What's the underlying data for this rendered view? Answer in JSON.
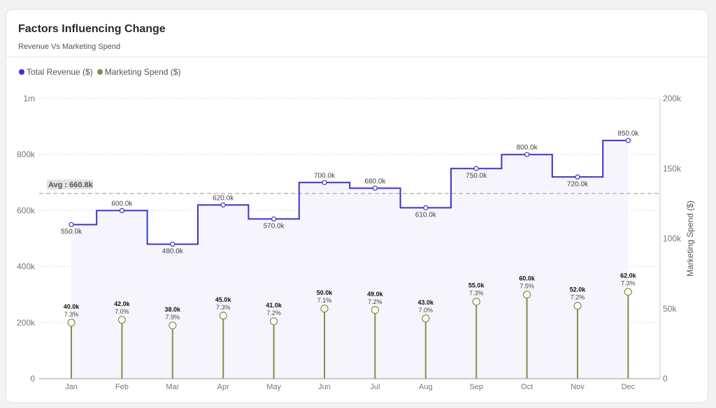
{
  "card": {
    "title": "Factors Influencing Change",
    "subtitle": "Revenue Vs Marketing Spend"
  },
  "legend": [
    {
      "label": "Total Revenue ($)",
      "color": "#3a35c8"
    },
    {
      "label": "Marketing Spend ($)",
      "color": "#8c8a4a"
    }
  ],
  "chart_data": {
    "type": "line",
    "categories": [
      "Jan",
      "Feb",
      "Mar",
      "Apr",
      "May",
      "Jun",
      "Jul",
      "Aug",
      "Sep",
      "Oct",
      "Nov",
      "Dec"
    ],
    "series": [
      {
        "name": "Total Revenue ($)",
        "kind": "step-line",
        "axis": "left",
        "color": "#3a35c8",
        "values": [
          550000,
          600000,
          480000,
          620000,
          570000,
          700000,
          680000,
          610000,
          750000,
          800000,
          720000,
          850000
        ],
        "labels": [
          "550.0k",
          "600.0k",
          "480.0k",
          "620.0k",
          "570.0k",
          "700.0k",
          "680.0k",
          "610.0k",
          "750.0k",
          "800.0k",
          "720.0k",
          "850.0k"
        ]
      },
      {
        "name": "Marketing Spend ($)",
        "kind": "lollipop",
        "axis": "right",
        "color": "#8c8a4a",
        "values": [
          40000,
          42000,
          38000,
          45000,
          41000,
          50000,
          49000,
          43000,
          55000,
          60000,
          52000,
          62000
        ],
        "labels": [
          "40.0k",
          "42.0k",
          "38.0k",
          "45.0k",
          "41.0k",
          "50.0k",
          "49.0k",
          "43.0k",
          "55.0k",
          "60.0k",
          "52.0k",
          "62.0k"
        ],
        "pct_labels": [
          "7.3%",
          "7.0%",
          "7.9%",
          "7.3%",
          "7.2%",
          "7.1%",
          "7.2%",
          "7.0%",
          "7.3%",
          "7.5%",
          "7.2%",
          "7.3%"
        ]
      }
    ],
    "average": {
      "value": 660833,
      "label": "Avg : 660.8k"
    },
    "y_left": {
      "min": 0,
      "max": 1000000,
      "ticks": [
        "0",
        "200k",
        "400k",
        "600k",
        "800k",
        "1m"
      ]
    },
    "y_right": {
      "min": 0,
      "max": 200000,
      "label": "Marketing Spend ($)",
      "ticks": [
        "0",
        "50k",
        "100k",
        "150k",
        "200k"
      ]
    },
    "grid": true
  }
}
